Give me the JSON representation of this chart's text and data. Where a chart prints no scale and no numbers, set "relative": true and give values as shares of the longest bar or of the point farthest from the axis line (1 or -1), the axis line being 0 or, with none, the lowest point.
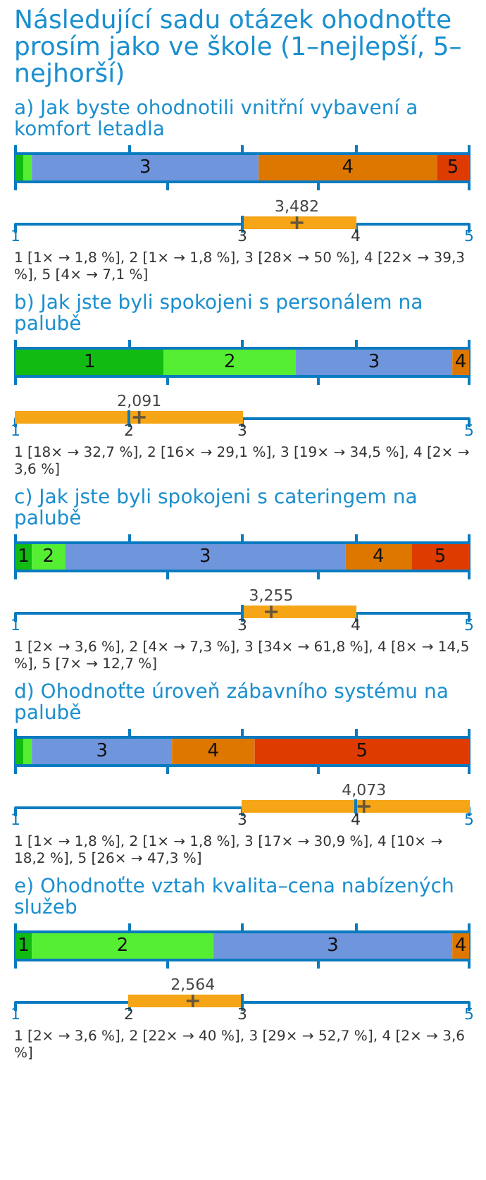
{
  "chart_data": [
    {
      "type": "other",
      "title": "Následující sadu otázek ohodnoťte prosím jako ve škole (1–nejlepší, 5–nejhorší)"
    },
    {
      "type": "bar",
      "title": "a) Jak byste ohodnotili vnitřní vybavení a komfort letadla",
      "orientation": "horizontal",
      "stacked": true,
      "relative": true,
      "categories": [
        null
      ],
      "series": [
        {
          "name": "1",
          "color": "#11bb11",
          "values": [
            0.018
          ]
        },
        {
          "name": "2",
          "color": "#55ee33",
          "values": [
            0.018
          ]
        },
        {
          "name": "3",
          "color": "#6f95dc",
          "values": [
            0.5
          ]
        },
        {
          "name": "4",
          "color": "#dd7700",
          "values": [
            0.393
          ]
        },
        {
          "name": "5",
          "color": "#dd3b00",
          "values": [
            0.071
          ]
        }
      ]
    },
    {
      "type": "box",
      "orientation": "horizontal",
      "categories": [
        null
      ],
      "color": "#f5a516",
      "boxes": [
        {
          "low": 3,
          "q1": 3,
          "median": 3,
          "q3": 4,
          "high": 4,
          "mean": 3.482
        }
      ],
      "xlim": [
        1,
        5
      ],
      "xticks": [
        1,
        3,
        4,
        5
      ],
      "annotations": [
        "3,482",
        "1 [1× → 1,8 %], 2 [1× → 1,8 %], 3 [28× → 50 %], 4 [22× → 39,3 %], 5 [4× → 7,1 %]"
      ]
    },
    {
      "type": "bar",
      "title": "b) Jak jste byli spokojeni s personálem na palubě",
      "orientation": "horizontal",
      "stacked": true,
      "relative": true,
      "categories": [
        null
      ],
      "series": [
        {
          "name": "1",
          "color": "#11bb11",
          "values": [
            0.327
          ]
        },
        {
          "name": "2",
          "color": "#55ee33",
          "values": [
            0.291
          ]
        },
        {
          "name": "3",
          "color": "#6f95dc",
          "values": [
            0.345
          ]
        },
        {
          "name": "4",
          "color": "#dd7700",
          "values": [
            0.037
          ]
        }
      ]
    },
    {
      "type": "box",
      "orientation": "horizontal",
      "categories": [
        null
      ],
      "color": "#f5a516",
      "boxes": [
        {
          "low": 1,
          "q1": 1,
          "median": 2,
          "q3": 3,
          "high": 3,
          "mean": 2.091
        }
      ],
      "xlim": [
        1,
        5
      ],
      "xticks": [
        1,
        2,
        3,
        5
      ],
      "annotations": [
        "2,091",
        "1 [18× → 32,7 %], 2 [16× → 29,1 %], 3 [19× → 34,5 %], 4 [2× → 3,6 %]"
      ]
    },
    {
      "type": "bar",
      "title": "c) Jak jste byli spokojeni s cateringem na palubě",
      "orientation": "horizontal",
      "stacked": true,
      "relative": true,
      "categories": [
        null
      ],
      "series": [
        {
          "name": "1",
          "color": "#11bb11",
          "values": [
            0.036
          ]
        },
        {
          "name": "2",
          "color": "#55ee33",
          "values": [
            0.073
          ]
        },
        {
          "name": "3",
          "color": "#6f95dc",
          "values": [
            0.618
          ]
        },
        {
          "name": "4",
          "color": "#dd7700",
          "values": [
            0.146
          ]
        },
        {
          "name": "5",
          "color": "#dd3b00",
          "values": [
            0.127
          ]
        }
      ]
    },
    {
      "type": "box",
      "orientation": "horizontal",
      "categories": [
        null
      ],
      "color": "#f5a516",
      "boxes": [
        {
          "low": 3,
          "q1": 3,
          "median": 3,
          "q3": 4,
          "high": 4,
          "mean": 3.255
        }
      ],
      "xlim": [
        1,
        5
      ],
      "xticks": [
        1,
        3,
        4,
        5
      ],
      "annotations": [
        "3,255",
        "1 [2× → 3,6 %], 2 [4× → 7,3 %], 3 [34× → 61,8 %], 4 [8× → 14,5 %], 5 [7× → 12,7 %]"
      ]
    },
    {
      "type": "bar",
      "title": "d) Ohodnoťte úroveň zábavního systému na palubě",
      "orientation": "horizontal",
      "stacked": true,
      "relative": true,
      "categories": [
        null
      ],
      "series": [
        {
          "name": "1",
          "color": "#11bb11",
          "values": [
            0.018
          ]
        },
        {
          "name": "2",
          "color": "#55ee33",
          "values": [
            0.018
          ]
        },
        {
          "name": "3",
          "color": "#6f95dc",
          "values": [
            0.309
          ]
        },
        {
          "name": "4",
          "color": "#dd7700",
          "values": [
            0.182
          ]
        },
        {
          "name": "5",
          "color": "#dd3b00",
          "values": [
            0.473
          ]
        }
      ]
    },
    {
      "type": "box",
      "orientation": "horizontal",
      "categories": [
        null
      ],
      "color": "#f5a516",
      "boxes": [
        {
          "low": 3,
          "q1": 3,
          "median": 4,
          "q3": 5,
          "high": 5,
          "mean": 4.073
        }
      ],
      "xlim": [
        1,
        5
      ],
      "xticks": [
        1,
        3,
        4,
        5
      ],
      "annotations": [
        "4,073",
        "1 [1× → 1,8 %], 2 [1× → 1,8 %], 3 [17× → 30,9 %], 4 [10× → 18,2 %], 5 [26× → 47,3 %]"
      ]
    },
    {
      "type": "bar",
      "title": "e) Ohodnoťte vztah kvalita–cena nabízených služeb",
      "orientation": "horizontal",
      "stacked": true,
      "relative": true,
      "categories": [
        null
      ],
      "series": [
        {
          "name": "1",
          "color": "#11bb11",
          "values": [
            0.036
          ]
        },
        {
          "name": "2",
          "color": "#55ee33",
          "values": [
            0.4
          ]
        },
        {
          "name": "3",
          "color": "#6f95dc",
          "values": [
            0.527
          ]
        },
        {
          "name": "4",
          "color": "#dd7700",
          "values": [
            0.037
          ]
        }
      ]
    },
    {
      "type": "box",
      "orientation": "horizontal",
      "categories": [
        null
      ],
      "color": "#f5a516",
      "boxes": [
        {
          "low": 2,
          "q1": 2,
          "median": 3,
          "q3": 3,
          "high": 3,
          "mean": 2.564
        }
      ],
      "xlim": [
        1,
        5
      ],
      "xticks": [
        1,
        2,
        3,
        5
      ],
      "annotations": [
        "2,564",
        "1 [2× → 3,6 %], 2 [22× → 40 %], 3 [29× → 52,7 %], 4 [2× → 3,6 %]"
      ]
    }
  ]
}
